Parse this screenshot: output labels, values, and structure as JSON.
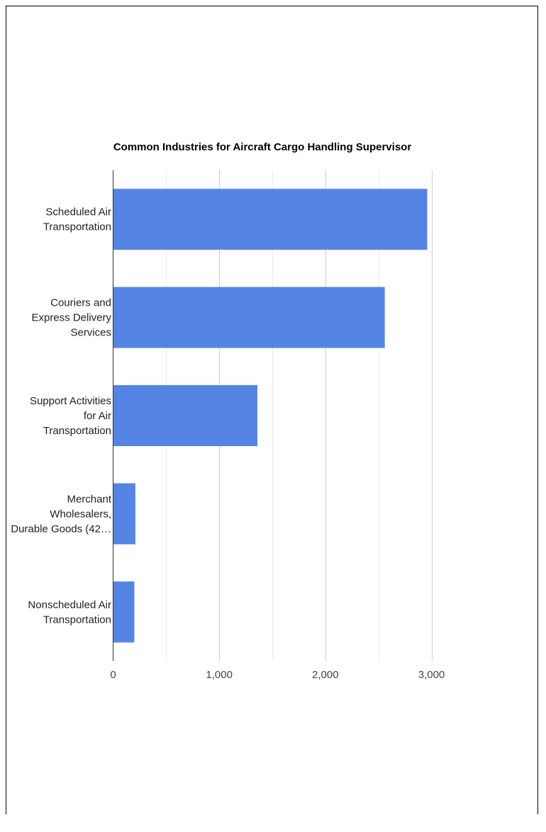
{
  "chart_data": {
    "type": "bar",
    "orientation": "horizontal",
    "title": "Common Industries for Aircraft Cargo Handling Supervisor",
    "categories": [
      [
        "Scheduled Air",
        "Transportation"
      ],
      [
        "Couriers and",
        "Express Delivery",
        "Services"
      ],
      [
        "Support Activities",
        "for Air",
        "Transportation"
      ],
      [
        "Merchant",
        "Wholesalers,",
        "Durable Goods (42…"
      ],
      [
        "Nonscheduled Air",
        "Transportation"
      ]
    ],
    "values": [
      2960,
      2560,
      1360,
      210,
      200
    ],
    "xlabel": "",
    "ylabel": "",
    "xlim": [
      0,
      3000
    ],
    "x_ticks": [
      0,
      1000,
      2000,
      3000
    ],
    "x_tick_labels": [
      "0",
      "1,000",
      "2,000",
      "3,000"
    ],
    "grid": true,
    "legend": "none",
    "bar_color": "#5485e4"
  }
}
